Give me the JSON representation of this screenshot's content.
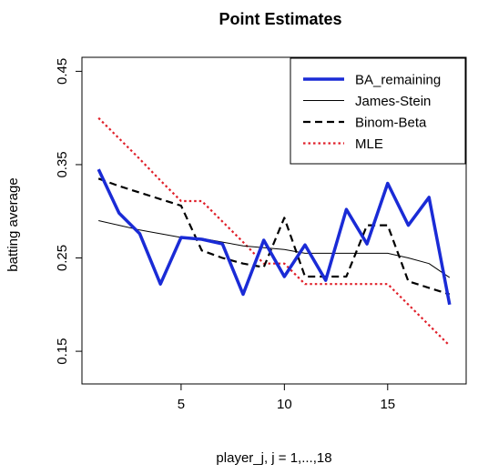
{
  "chart_data": {
    "type": "line",
    "title": "Point Estimates",
    "xlabel": "player_j, j = 1,...,18",
    "ylabel": "batting average",
    "xlim": [
      0.2,
      18.8
    ],
    "ylim": [
      0.115,
      0.465
    ],
    "x_ticks": [
      5,
      10,
      15
    ],
    "x_tick_labels": [
      "5",
      "10",
      "15"
    ],
    "y_ticks": [
      0.15,
      0.25,
      0.35,
      0.45
    ],
    "y_tick_labels": [
      "0.15",
      "0.25",
      "0.35",
      "0.45"
    ],
    "grid": false,
    "legend_position": "top-right",
    "x": [
      1,
      2,
      3,
      4,
      5,
      6,
      7,
      8,
      9,
      10,
      11,
      12,
      13,
      14,
      15,
      16,
      17,
      18
    ],
    "series": [
      {
        "name": "BA_remaining",
        "color": "#1a2bd6",
        "style": "solid-thick",
        "values": [
          0.345,
          0.298,
          0.276,
          0.222,
          0.272,
          0.27,
          0.265,
          0.211,
          0.269,
          0.23,
          0.264,
          0.226,
          0.302,
          0.265,
          0.33,
          0.285,
          0.315,
          0.2
        ]
      },
      {
        "name": "James-Stein",
        "color": "#000000",
        "style": "solid-thin",
        "values": [
          0.29,
          0.285,
          0.28,
          0.276,
          0.272,
          0.271,
          0.267,
          0.263,
          0.261,
          0.259,
          0.255,
          0.255,
          0.255,
          0.255,
          0.255,
          0.25,
          0.244,
          0.229
        ]
      },
      {
        "name": "Binom-Beta",
        "color": "#000000",
        "style": "dashed",
        "values": [
          0.335,
          0.327,
          0.32,
          0.313,
          0.306,
          0.258,
          0.25,
          0.244,
          0.24,
          0.293,
          0.23,
          0.23,
          0.23,
          0.285,
          0.285,
          0.225,
          0.218,
          0.211
        ]
      },
      {
        "name": "MLE",
        "color": "#e0202a",
        "style": "dotted",
        "values": [
          0.4,
          0.378,
          0.356,
          0.333,
          0.311,
          0.311,
          0.289,
          0.267,
          0.244,
          0.244,
          0.222,
          0.222,
          0.222,
          0.222,
          0.222,
          0.2,
          0.178,
          0.156
        ]
      }
    ]
  }
}
